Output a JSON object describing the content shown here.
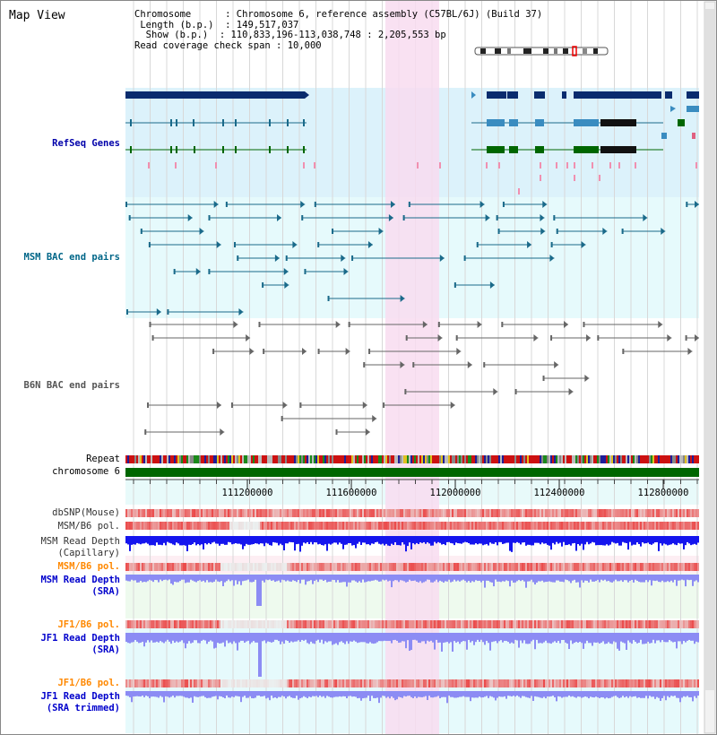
{
  "panel_title": "Map View",
  "info": {
    "chromosome_key": "Chromosome     ",
    "chromosome_val": "Chromosome 6, reference assembly (C57BL/6J) (Build 37)",
    "length_key": " Length (b.p.) ",
    "length_val": "149,517,037",
    "show_key": "  Show (b.p.) ",
    "show_val": "110,833,196-113,038,748 : 2,205,553 bp",
    "coverage_key": "Read coverage check span",
    "coverage_val": "10,000"
  },
  "tracks": {
    "refseq": {
      "label": "RefSeq Genes",
      "color": "#0000aa"
    },
    "msm_bac": {
      "label": "MSM BAC end pairs",
      "color": "#006688"
    },
    "b6n_bac": {
      "label": "B6N BAC end pairs",
      "color": "#555555"
    },
    "repeat": {
      "label": "Repeat"
    },
    "chromosome": {
      "label": "chromosome 6"
    },
    "dbsnp": {
      "label": "dbSNP(Mouse)"
    },
    "msm_b6_pol_1": {
      "label": "MSM/B6 pol."
    },
    "msm_read_depth_cap": {
      "label": "MSM Read Depth",
      "sub": "(Capillary)"
    },
    "msm_b6_pol_2": {
      "label": "MSM/B6 pol.",
      "color": "#ff8800"
    },
    "msm_read_depth_sra": {
      "label": "MSM Read Depth",
      "sub": "(SRA)",
      "color": "#0000cc"
    },
    "jf1_b6_pol_1": {
      "label": "JF1/B6 pol.",
      "color": "#ff8800"
    },
    "jf1_read_depth_sra": {
      "label": "JF1 Read Depth",
      "sub": "(SRA)",
      "color": "#0000cc"
    },
    "jf1_b6_pol_2": {
      "label": "JF1/B6 pol.",
      "color": "#ff8800"
    },
    "jf1_read_depth_trim": {
      "label": "JF1 Read Depth",
      "sub": "(SRA trimmed)",
      "color": "#0000cc"
    }
  },
  "ruler": {
    "ticks": [
      "111200000",
      "111600000",
      "112000000",
      "112400000",
      "112800000"
    ]
  },
  "colors": {
    "refseq_bg": "#dcf2fb",
    "msm_bg": "#e6fafc",
    "highlight": "#f8dcf0",
    "gene_dark": "#0a2c6e",
    "gene_mid": "#3a8cc0",
    "gene_green": "#006600",
    "chrom_green": "#006600",
    "depth_blue": "#1515ee",
    "depth_lightblue": "#8c8cf4"
  }
}
